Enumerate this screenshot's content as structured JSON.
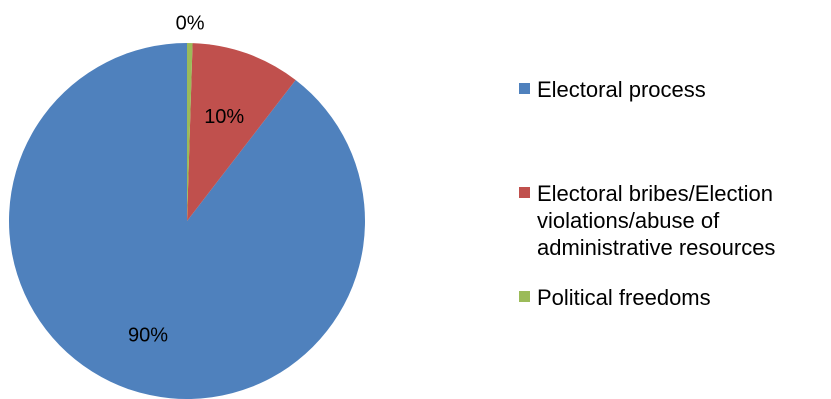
{
  "chart_data": {
    "type": "pie",
    "title": "",
    "slices": [
      {
        "label": "Electoral process",
        "value": 90,
        "display": "90%",
        "color": "#4F81BD"
      },
      {
        "label": "Electoral bribes/Election violations/abuse of administrative resources",
        "legend_text": "Electoral bribes/Election\nviolations/abuse of\nadministrative resources",
        "value": 10,
        "display": "10%",
        "color": "#C0504D"
      },
      {
        "label": "Political freedoms",
        "value": 0.5,
        "display": "0%",
        "color": "#9BBB59"
      }
    ],
    "legend_position": "right"
  }
}
